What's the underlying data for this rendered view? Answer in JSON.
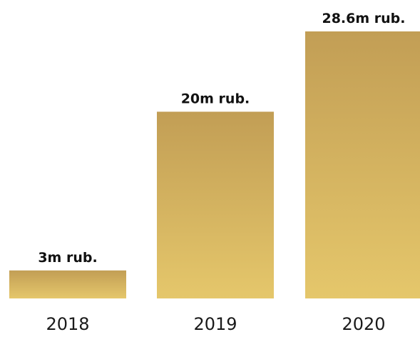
{
  "chart_data": {
    "type": "bar",
    "categories": [
      "2018",
      "2019",
      "2020"
    ],
    "values": [
      3,
      20,
      28.6
    ],
    "data_labels": [
      "3m rub.",
      "20m rub.",
      "28.6m rub."
    ],
    "ylim": [
      0,
      28.6
    ],
    "grid": false,
    "legend": "none",
    "colors": {
      "bar_top": "#c29e55",
      "bar_bottom": "#e5c76b",
      "label_text": "#111111",
      "category_text": "#1a1a1a"
    }
  }
}
